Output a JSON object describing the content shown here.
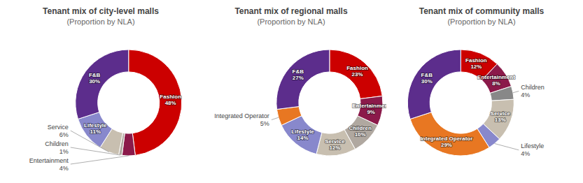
{
  "chart_data": [
    {
      "type": "pie",
      "title": "Tenant mix of city-level malls",
      "subtitle": "(Proportion by NLA)",
      "categories": [
        "Fashion",
        "Entertainment",
        "Children",
        "Service",
        "Lifestyle",
        "F&B"
      ],
      "values": [
        48,
        4,
        1,
        6,
        11,
        30
      ],
      "value_labels": [
        "48%",
        "4%",
        "1%",
        "6%",
        "11%",
        "30%"
      ],
      "colors": [
        "#cc0000",
        "#8b1a4a",
        "#b0a8a0",
        "#c8bfb0",
        "#8888cc",
        "#5c2d8c"
      ],
      "data_labels": true
    },
    {
      "type": "pie",
      "title": "Tenant mix of regional malls",
      "subtitle": "(Proportion by NLA)",
      "categories": [
        "Fashion",
        "Entertainment",
        "Children",
        "Service",
        "Lifestyle",
        "Integrated Operator",
        "F&B"
      ],
      "values": [
        23,
        9,
        10,
        12,
        14,
        5,
        27
      ],
      "value_labels": [
        "23%",
        "9%",
        "10%",
        "12%",
        "14%",
        "5%",
        "27%"
      ],
      "colors": [
        "#cc0000",
        "#8b1a4a",
        "#b0a8a0",
        "#c8bfb0",
        "#8888cc",
        "#e87722",
        "#5c2d8c"
      ],
      "data_labels": true
    },
    {
      "type": "pie",
      "title": "Tenant mix of community malls",
      "subtitle": "(Proportion by NLA)",
      "categories": [
        "Fashion",
        "Entertainment",
        "Children",
        "Service",
        "Lifestyle",
        "Integrated Operator",
        "F&B"
      ],
      "values": [
        12,
        8,
        4,
        13,
        4,
        29,
        30
      ],
      "value_labels": [
        "12%",
        "8%",
        "4%",
        "13%",
        "4%",
        "29%",
        "30%"
      ],
      "colors": [
        "#cc0000",
        "#8b1a4a",
        "#888888",
        "#c8bfb0",
        "#8888cc",
        "#e87722",
        "#5c2d8c"
      ],
      "data_labels": true
    }
  ]
}
